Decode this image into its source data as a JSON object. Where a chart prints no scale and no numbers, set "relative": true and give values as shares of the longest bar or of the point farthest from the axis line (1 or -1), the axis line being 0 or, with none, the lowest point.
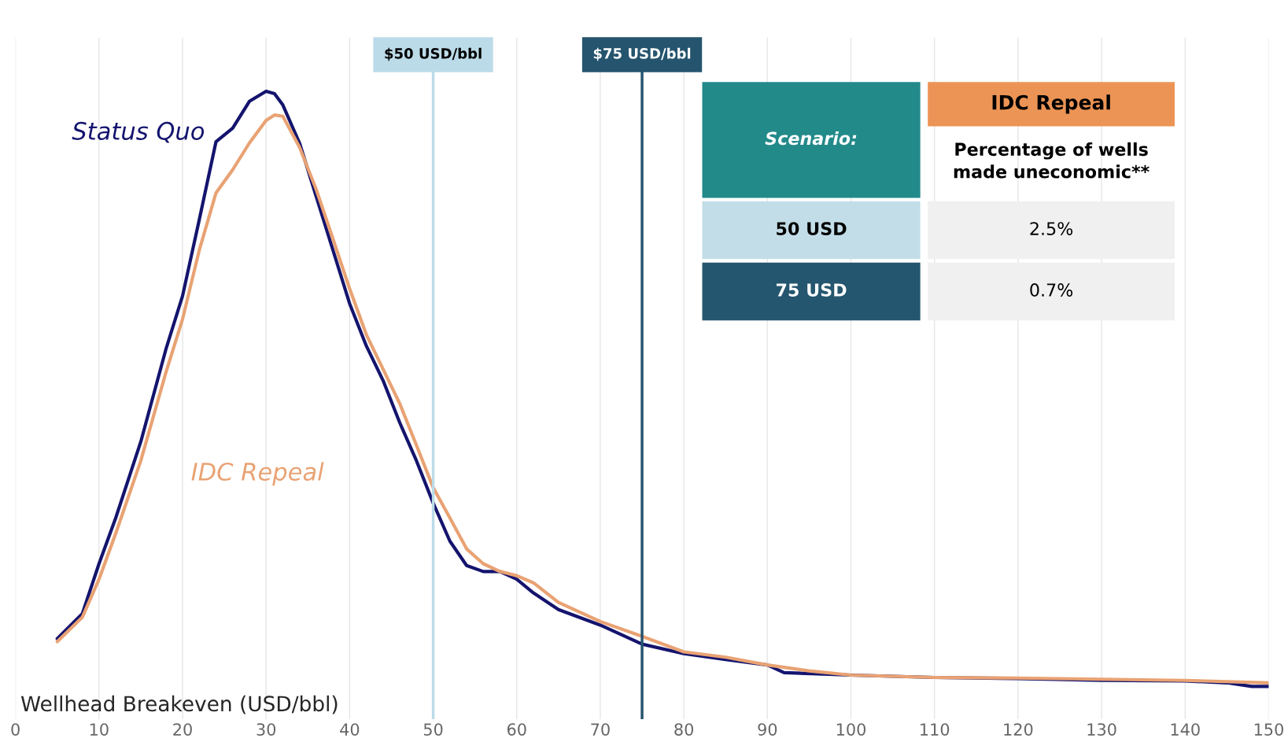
{
  "chart_data": {
    "type": "line",
    "relative": true,
    "xlabel": "Wellhead Breakeven (USD/bbl)",
    "xlim": [
      0,
      150
    ],
    "xticks": [
      0,
      10,
      20,
      30,
      40,
      50,
      60,
      70,
      80,
      90,
      100,
      110,
      120,
      130,
      140,
      150
    ],
    "grid": "x",
    "legend": false,
    "marker": "none",
    "line_style": "solid",
    "series": [
      {
        "name": "Status Quo",
        "color": "#14146e",
        "x": [
          5,
          8,
          10,
          12,
          15,
          18,
          20,
          22,
          24,
          26,
          28,
          30,
          31,
          32,
          34,
          36,
          38,
          40,
          42,
          44,
          46,
          48,
          50,
          52,
          54,
          56,
          58,
          60,
          62,
          65,
          70,
          75,
          80,
          85,
          90,
          92,
          100,
          110,
          120,
          130,
          140,
          145,
          148,
          150
        ],
        "values": [
          0.08,
          0.122,
          0.206,
          0.283,
          0.411,
          0.566,
          0.656,
          0.784,
          0.915,
          0.938,
          0.983,
          1.0,
          0.996,
          0.977,
          0.913,
          0.823,
          0.733,
          0.643,
          0.572,
          0.514,
          0.443,
          0.379,
          0.308,
          0.244,
          0.203,
          0.193,
          0.193,
          0.18,
          0.157,
          0.129,
          0.103,
          0.071,
          0.055,
          0.045,
          0.036,
          0.023,
          0.019,
          0.015,
          0.013,
          0.01,
          0.009,
          0.006,
          0,
          0
        ]
      },
      {
        "name": "IDC Repeal",
        "color": "#e9a273",
        "x": [
          5,
          8,
          10,
          12,
          15,
          18,
          20,
          22,
          24,
          26,
          28,
          30,
          31,
          32,
          34,
          36,
          38,
          40,
          42,
          44,
          46,
          48,
          50,
          52,
          54,
          56,
          58,
          60,
          62,
          65,
          70,
          75,
          80,
          85,
          90,
          95,
          100,
          110,
          120,
          130,
          140,
          150
        ],
        "values": [
          0.075,
          0.116,
          0.18,
          0.257,
          0.379,
          0.527,
          0.617,
          0.733,
          0.829,
          0.868,
          0.913,
          0.951,
          0.96,
          0.958,
          0.906,
          0.835,
          0.752,
          0.668,
          0.591,
          0.533,
          0.475,
          0.405,
          0.334,
          0.283,
          0.231,
          0.206,
          0.193,
          0.186,
          0.174,
          0.141,
          0.109,
          0.084,
          0.058,
          0.049,
          0.036,
          0.026,
          0.019,
          0.015,
          0.014,
          0.012,
          0.01,
          0.006
        ]
      }
    ],
    "ref_lines": [
      {
        "axis": "x",
        "value": 50,
        "label": "$50 USD/bbl",
        "color": "#bcdbe8"
      },
      {
        "axis": "x",
        "value": 75,
        "label": "$75 USD/bbl",
        "color": "#25546e"
      }
    ],
    "annotations": [
      "Scenario:",
      "IDC Repeal",
      "Percentage of wells\nmade uneconomic**",
      "50 USD",
      "2.5%",
      "75 USD",
      "0.7%"
    ]
  }
}
